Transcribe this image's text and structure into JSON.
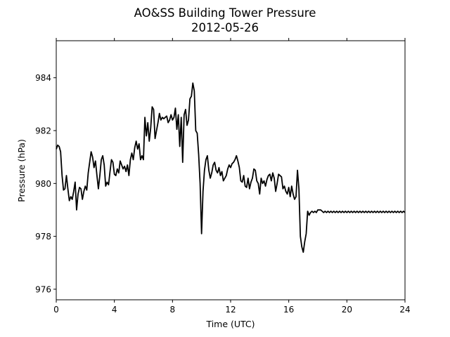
{
  "chart_data": {
    "type": "line",
    "title": "AO&SS Building Tower Pressure",
    "subtitle": "2012-05-26",
    "xlabel": "Time (UTC)",
    "ylabel": "Pressure (hPa)",
    "xlim": [
      0,
      24
    ],
    "ylim": [
      975.6,
      985.4
    ],
    "xticks": [
      0,
      4,
      8,
      12,
      16,
      20,
      24
    ],
    "xtick_labels": [
      "0",
      "4",
      "8",
      "12",
      "16",
      "20",
      "24"
    ],
    "yticks": [
      976,
      978,
      980,
      982,
      984
    ],
    "ytick_labels": [
      "976",
      "978",
      "980",
      "982",
      "984"
    ],
    "grid": false,
    "line_color": "#000000",
    "series": [
      {
        "x": [
          0.0,
          0.1,
          0.2,
          0.3,
          0.4,
          0.5,
          0.6,
          0.7,
          0.8,
          0.9,
          1.0,
          1.1,
          1.2,
          1.3,
          1.4,
          1.5,
          1.6,
          1.7,
          1.8,
          1.9,
          2.0,
          2.1,
          2.2,
          2.3,
          2.4,
          2.5,
          2.6,
          2.7,
          2.8,
          2.9,
          3.0,
          3.1,
          3.2,
          3.3,
          3.4,
          3.5,
          3.6,
          3.7,
          3.8,
          3.9,
          4.0,
          4.1,
          4.2,
          4.3,
          4.4,
          4.5,
          4.6,
          4.7,
          4.8,
          4.9,
          5.0,
          5.1,
          5.2,
          5.3,
          5.4,
          5.5,
          5.6,
          5.7,
          5.8,
          5.9,
          6.0,
          6.1,
          6.2,
          6.3,
          6.4,
          6.5,
          6.6,
          6.7,
          6.8,
          6.9,
          7.0,
          7.1,
          7.2,
          7.3,
          7.4,
          7.5,
          7.6,
          7.7,
          7.8,
          7.9,
          8.0,
          8.1,
          8.2,
          8.3,
          8.4,
          8.5,
          8.6,
          8.7,
          8.8,
          8.9,
          9.0,
          9.1,
          9.2,
          9.3,
          9.4,
          9.5,
          9.6,
          9.7,
          9.8,
          9.9,
          10.0,
          10.1,
          10.2,
          10.3,
          10.4,
          10.5,
          10.6,
          10.7,
          10.8,
          10.9,
          11.0,
          11.1,
          11.2,
          11.3,
          11.4,
          11.5,
          11.6,
          11.7,
          11.8,
          11.9,
          12.0,
          12.1,
          12.2,
          12.3,
          12.4,
          12.5,
          12.6,
          12.7,
          12.8,
          12.9,
          13.0,
          13.1,
          13.2,
          13.3,
          13.4,
          13.5,
          13.6,
          13.7,
          13.8,
          13.9,
          14.0,
          14.1,
          14.2,
          14.3,
          14.4,
          14.5,
          14.6,
          14.7,
          14.8,
          14.9,
          15.0,
          15.1,
          15.2,
          15.3,
          15.4,
          15.5,
          15.6,
          15.7,
          15.8,
          15.9,
          16.0,
          16.1,
          16.2,
          16.3,
          16.4,
          16.5,
          16.6,
          16.7,
          16.8,
          16.9,
          17.0,
          17.1,
          17.2,
          17.3,
          17.4,
          17.5,
          17.6,
          17.7,
          17.8,
          17.9,
          18.0,
          18.1,
          18.2,
          18.3,
          18.4,
          18.5,
          18.6,
          18.7,
          18.8,
          18.9,
          19.0,
          19.1,
          19.2,
          19.3,
          19.4,
          19.5,
          19.6,
          19.7,
          19.8,
          19.9,
          20.0,
          20.1,
          20.2,
          20.3,
          20.4,
          20.5,
          20.6,
          20.7,
          20.8,
          20.9,
          21.0,
          21.1,
          21.2,
          21.3,
          21.4,
          21.5,
          21.6,
          21.7,
          21.8,
          21.9,
          22.0,
          22.1,
          22.2,
          22.3,
          22.4,
          22.5,
          22.6,
          22.7,
          22.8,
          22.9,
          23.0,
          23.1,
          23.2,
          23.3,
          23.4,
          23.5,
          23.6,
          23.7,
          23.8,
          23.9,
          24.0
        ],
        "y": [
          981.3,
          981.45,
          981.4,
          981.2,
          980.3,
          979.75,
          979.8,
          980.3,
          979.8,
          979.35,
          979.5,
          979.4,
          979.7,
          980.05,
          979.0,
          979.6,
          979.85,
          979.8,
          979.4,
          979.7,
          979.9,
          979.75,
          980.4,
          980.8,
          981.2,
          981.0,
          980.6,
          980.85,
          980.3,
          979.8,
          980.3,
          980.9,
          981.05,
          980.7,
          979.9,
          980.05,
          979.95,
          980.45,
          980.9,
          980.8,
          980.35,
          980.3,
          980.55,
          980.4,
          980.85,
          980.7,
          980.55,
          980.65,
          980.45,
          980.7,
          980.3,
          980.9,
          981.15,
          980.9,
          981.35,
          981.6,
          981.3,
          981.5,
          980.9,
          981.05,
          980.9,
          982.5,
          981.8,
          982.3,
          981.6,
          982.1,
          982.9,
          982.8,
          981.7,
          982.0,
          982.3,
          982.65,
          982.4,
          982.5,
          982.45,
          982.5,
          982.55,
          982.3,
          982.4,
          982.6,
          982.4,
          982.5,
          982.85,
          982.05,
          982.6,
          981.4,
          982.5,
          980.8,
          982.6,
          982.8,
          982.2,
          982.4,
          983.2,
          983.3,
          983.8,
          983.5,
          982.0,
          981.9,
          981.1,
          980.0,
          978.1,
          979.7,
          980.5,
          980.9,
          981.05,
          980.5,
          980.2,
          980.4,
          980.7,
          980.8,
          980.5,
          980.4,
          980.6,
          980.3,
          980.45,
          980.1,
          980.2,
          980.3,
          980.55,
          980.7,
          980.6,
          980.75,
          980.8,
          980.9,
          981.05,
          980.85,
          980.6,
          980.1,
          980.05,
          980.3,
          979.9,
          979.85,
          980.2,
          979.8,
          980.05,
          980.2,
          980.55,
          980.5,
          980.1,
          980.0,
          979.6,
          980.2,
          980.0,
          980.1,
          979.9,
          980.15,
          980.3,
          980.35,
          980.1,
          980.4,
          980.2,
          979.7,
          980.0,
          980.35,
          980.3,
          980.25,
          979.8,
          979.9,
          979.7,
          979.6,
          979.85,
          979.5,
          979.9,
          979.6,
          979.4,
          979.5,
          980.5,
          979.8,
          978.0,
          977.6,
          977.4,
          977.8,
          978.1,
          978.95,
          978.8,
          978.9,
          978.95,
          978.9,
          978.95,
          978.9,
          979.0,
          979.0,
          979.0,
          978.95,
          978.9,
          978.95,
          978.9,
          978.95,
          978.9,
          978.95,
          978.9,
          978.95,
          978.9,
          978.95,
          978.9,
          978.95,
          978.9,
          978.95,
          978.9,
          978.95,
          978.9,
          978.95,
          978.9,
          978.95,
          978.9,
          978.95,
          978.9,
          978.95,
          978.9,
          978.95,
          978.9,
          978.95,
          978.9,
          978.95,
          978.9,
          978.95,
          978.9,
          978.95,
          978.9,
          978.95,
          978.9,
          978.95,
          978.9,
          978.95,
          978.9,
          978.95,
          978.9,
          978.95,
          978.9,
          978.95,
          978.9,
          978.95,
          978.9,
          978.95,
          978.9,
          978.95,
          978.9,
          978.95,
          978.9,
          978.95,
          978.9
        ]
      }
    ]
  }
}
